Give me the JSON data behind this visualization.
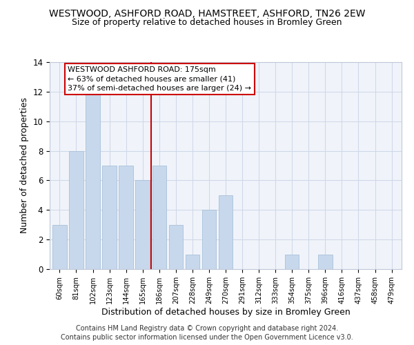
{
  "title": "WESTWOOD, ASHFORD ROAD, HAMSTREET, ASHFORD, TN26 2EW",
  "subtitle": "Size of property relative to detached houses in Bromley Green",
  "xlabel": "Distribution of detached houses by size in Bromley Green",
  "ylabel": "Number of detached properties",
  "bar_color": "#c8d8ec",
  "bar_edgecolor": "#a8c0d8",
  "categories": [
    "60sqm",
    "81sqm",
    "102sqm",
    "123sqm",
    "144sqm",
    "165sqm",
    "186sqm",
    "207sqm",
    "228sqm",
    "249sqm",
    "270sqm",
    "291sqm",
    "312sqm",
    "333sqm",
    "354sqm",
    "375sqm",
    "396sqm",
    "416sqm",
    "437sqm",
    "458sqm",
    "479sqm"
  ],
  "values": [
    3,
    8,
    12,
    7,
    7,
    6,
    7,
    3,
    1,
    4,
    5,
    0,
    0,
    0,
    1,
    0,
    1,
    0,
    0,
    0,
    0
  ],
  "ylim": [
    0,
    14
  ],
  "yticks": [
    0,
    2,
    4,
    6,
    8,
    10,
    12,
    14
  ],
  "vline_x": 5.5,
  "vline_color": "#cc0000",
  "annotation_title": "WESTWOOD ASHFORD ROAD: 175sqm",
  "annotation_line1": "← 63% of detached houses are smaller (41)",
  "annotation_line2": "37% of semi-detached houses are larger (24) →",
  "annotation_box_edgecolor": "#cc0000",
  "footer1": "Contains HM Land Registry data © Crown copyright and database right 2024.",
  "footer2": "Contains public sector information licensed under the Open Government Licence v3.0.",
  "grid_color": "#d0d8e8",
  "background_color": "#f0f4fa"
}
